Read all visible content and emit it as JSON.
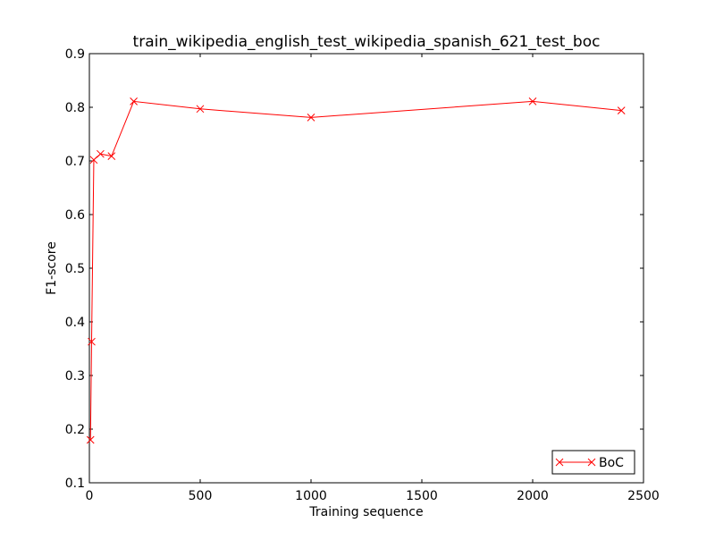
{
  "chart_data": {
    "type": "line",
    "title": "train_wikipedia_english_test_wikipedia_spanish_621_test_boc",
    "xlabel": "Training sequence",
    "ylabel": "F1-score",
    "xlim": [
      0,
      2500
    ],
    "ylim": [
      0.1,
      0.9
    ],
    "xticks": [
      0,
      500,
      1000,
      1500,
      2000,
      2500
    ],
    "yticks": [
      0.1,
      0.2,
      0.3,
      0.4,
      0.5,
      0.6,
      0.7,
      0.8,
      0.9
    ],
    "grid": false,
    "legend_position": "lower-right",
    "series": [
      {
        "name": "BoC",
        "color": "#ff0000",
        "marker": "x",
        "x": [
          5,
          10,
          20,
          50,
          100,
          200,
          500,
          1000,
          2000,
          2400
        ],
        "y": [
          0.18,
          0.363,
          0.702,
          0.713,
          0.709,
          0.811,
          0.797,
          0.781,
          0.811,
          0.794
        ]
      }
    ]
  }
}
